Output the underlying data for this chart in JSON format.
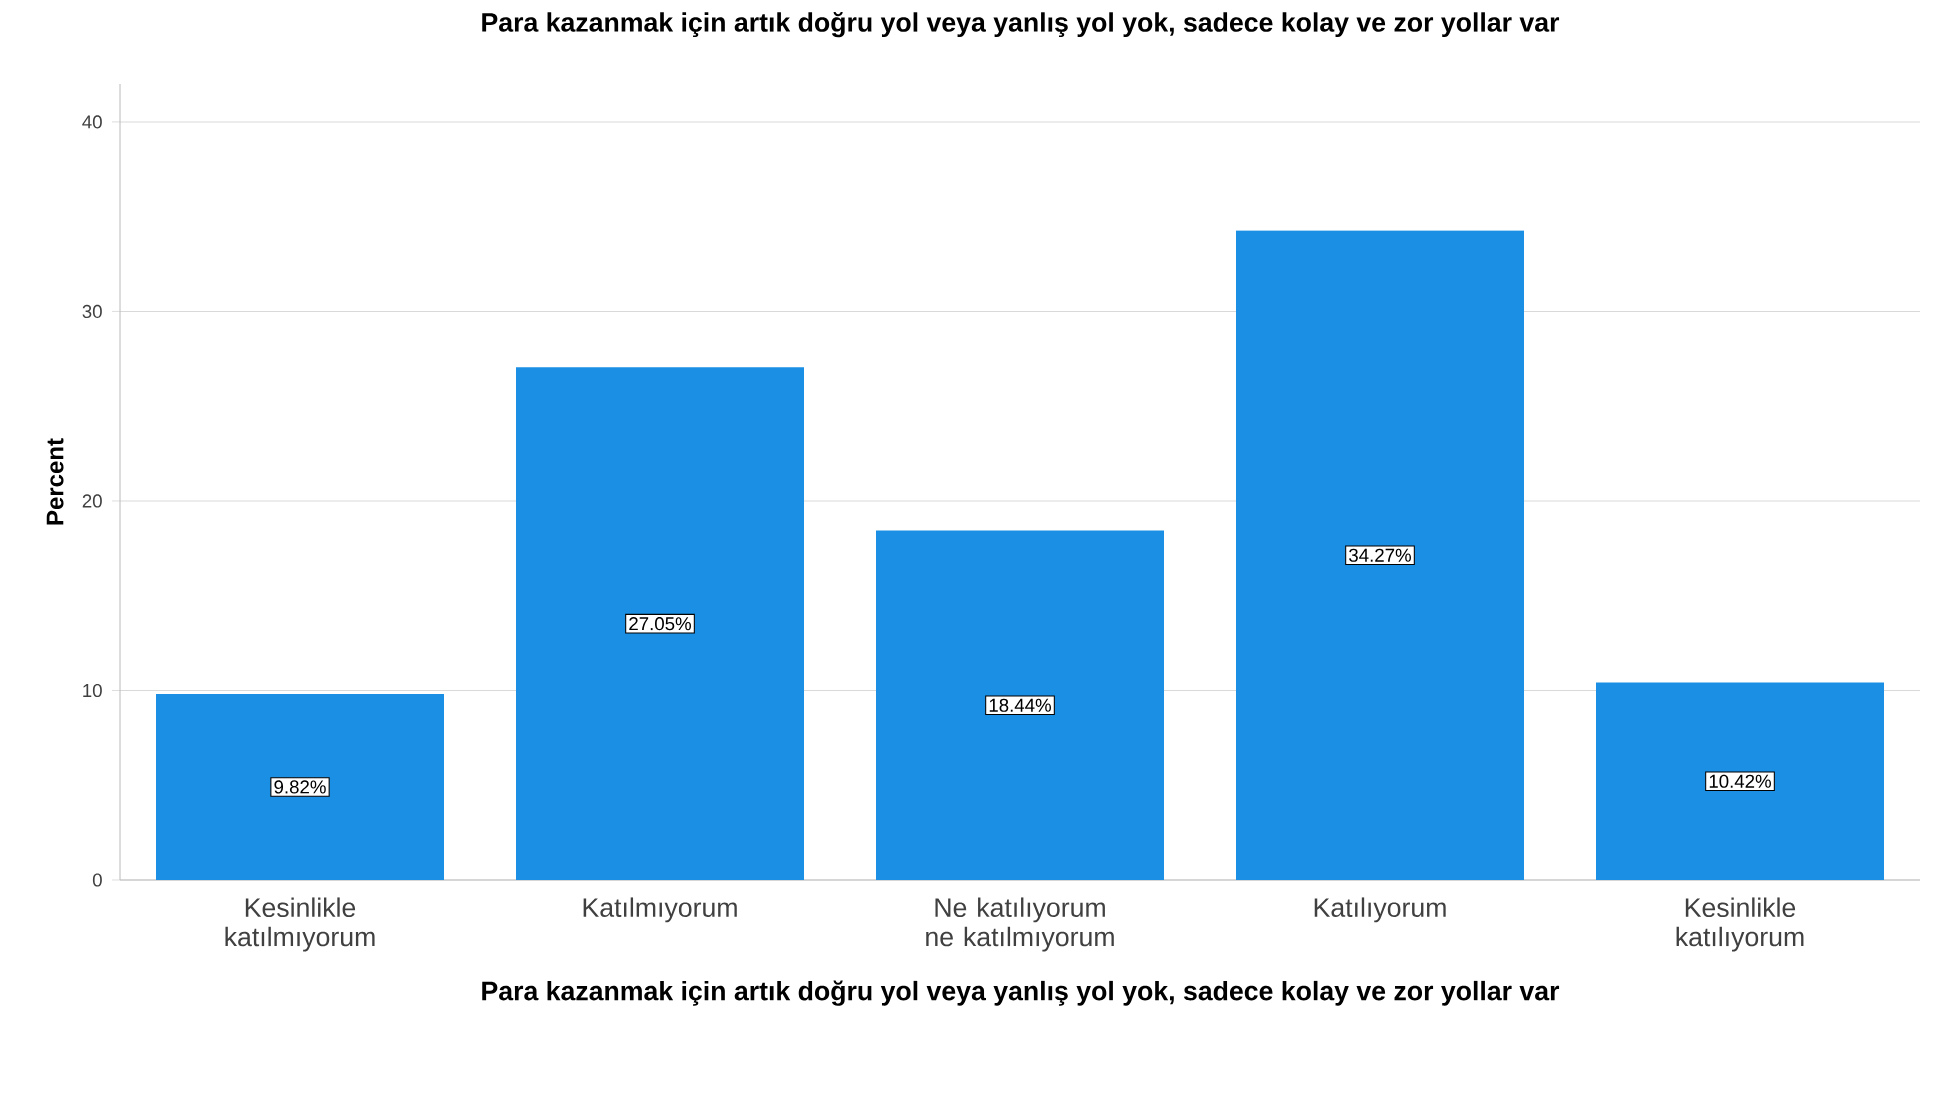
{
  "chart_data": {
    "type": "bar",
    "title": "Para kazanmak için artık doğru yol veya yanlış yol yok, sadece kolay ve zor yollar var",
    "xlabel": "Para kazanmak için artık doğru yol veya yanlış yol yok, sadece kolay ve zor yollar var",
    "ylabel": "Percent",
    "categories": [
      "Kesinlikle katılmıyorum",
      "Katılmıyorum",
      "Ne katılıyorum ne katılmıyorum",
      "Katılıyorum",
      "Kesinlikle katılıyorum"
    ],
    "values": [
      9.82,
      27.05,
      18.44,
      34.27,
      10.42
    ],
    "value_labels": [
      "9.82%",
      "27.05%",
      "18.44%",
      "34.27%",
      "10.42%"
    ],
    "color": "#1a8fe3",
    "ylim": [
      0,
      42
    ],
    "yticks": [
      0,
      10,
      20,
      30,
      40
    ],
    "grid": "y"
  }
}
